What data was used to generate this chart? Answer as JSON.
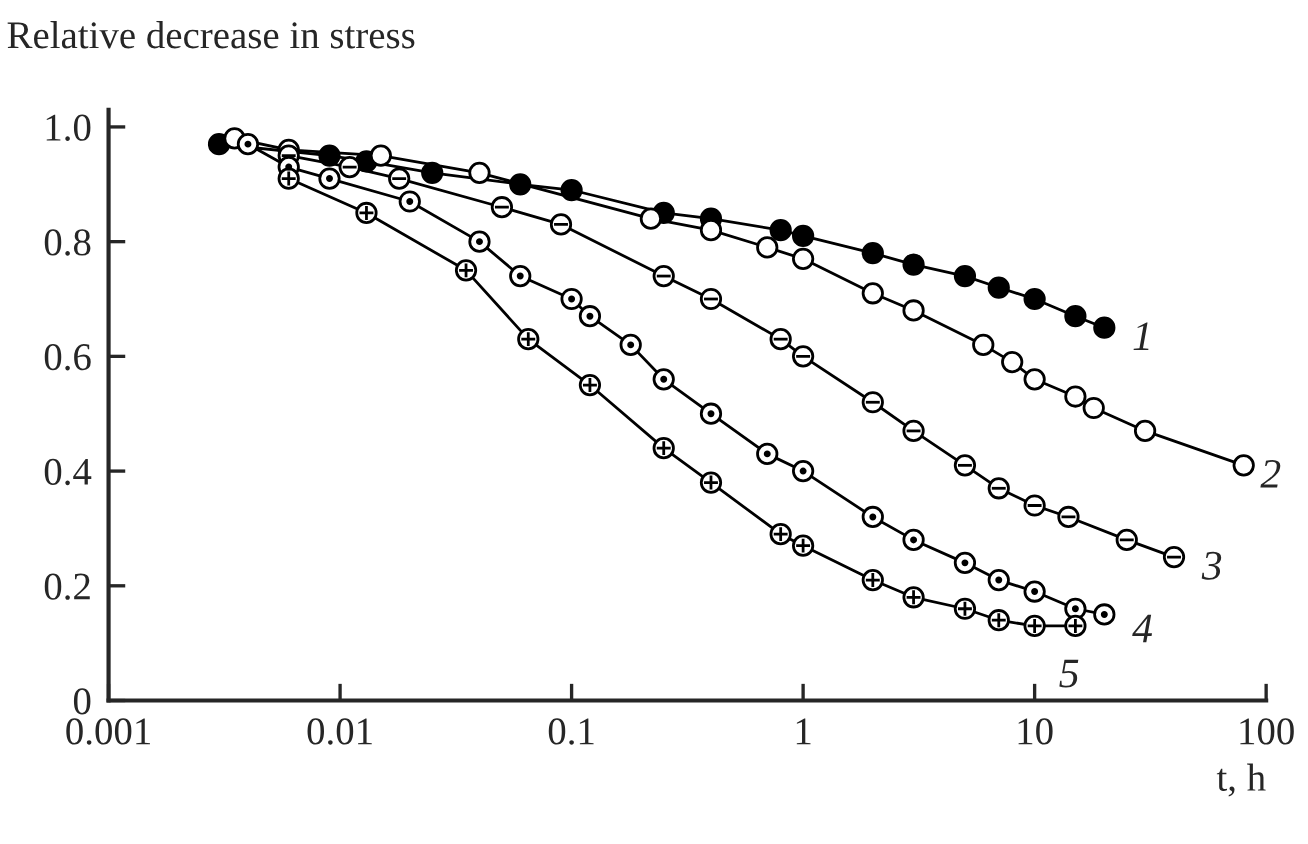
{
  "chart_data": {
    "type": "line",
    "ylabel": "Relative decrease in stress",
    "xlabel": "t, h",
    "log": "x",
    "grid": false,
    "legend": "right",
    "marker": "circle",
    "xlim": [
      0.001,
      100
    ],
    "xticks": [
      0.001,
      0.01,
      0.1,
      1,
      10,
      100
    ],
    "ylim": [
      0,
      1.03
    ],
    "yticks": [
      0,
      0.2,
      0.4,
      0.6,
      0.8,
      {
        "value": 1,
        "label": "1.0"
      }
    ],
    "series": [
      {
        "name": "1",
        "color": "#000000",
        "x": [
          0.003,
          0.009,
          0.013,
          0.025,
          0.06,
          0.1,
          0.25,
          0.4,
          0.8,
          1,
          2,
          3,
          5,
          7,
          10,
          15,
          20
        ],
        "values": [
          0.97,
          0.95,
          0.94,
          0.92,
          0.9,
          0.89,
          0.85,
          0.84,
          0.82,
          0.81,
          0.78,
          0.76,
          0.74,
          0.72,
          0.7,
          0.67,
          0.65
        ]
      },
      {
        "name": "2",
        "color": "#000000",
        "x": [
          0.0035,
          0.006,
          0.015,
          0.04,
          0.22,
          0.4,
          0.7,
          1,
          2,
          3,
          6,
          8,
          10,
          15,
          18,
          30,
          80
        ],
        "values": [
          0.98,
          0.96,
          0.95,
          0.92,
          0.84,
          0.82,
          0.79,
          0.77,
          0.71,
          0.68,
          0.62,
          0.59,
          0.56,
          0.53,
          0.51,
          0.47,
          0.41
        ]
      },
      {
        "name": "3",
        "color": "#000000",
        "x": [
          0.006,
          0.011,
          0.018,
          0.05,
          0.09,
          0.25,
          0.4,
          0.8,
          1,
          2,
          3,
          5,
          7,
          10,
          14,
          25,
          40
        ],
        "values": [
          0.95,
          0.93,
          0.91,
          0.86,
          0.83,
          0.74,
          0.7,
          0.63,
          0.6,
          0.52,
          0.47,
          0.41,
          0.37,
          0.34,
          0.32,
          0.28,
          0.25
        ]
      },
      {
        "name": "4",
        "color": "#000000",
        "x": [
          0.004,
          0.006,
          0.009,
          0.02,
          0.04,
          0.06,
          0.1,
          0.12,
          0.18,
          0.25,
          0.4,
          0.7,
          1,
          2,
          3,
          5,
          7,
          10,
          15,
          20
        ],
        "values": [
          0.97,
          0.93,
          0.91,
          0.87,
          0.8,
          0.74,
          0.7,
          0.67,
          0.62,
          0.56,
          0.5,
          0.43,
          0.4,
          0.32,
          0.28,
          0.24,
          0.21,
          0.19,
          0.16,
          0.15
        ]
      },
      {
        "name": "5",
        "color": "#000000",
        "x": [
          0.006,
          0.013,
          0.035,
          0.065,
          0.12,
          0.25,
          0.4,
          0.8,
          1,
          2,
          3,
          5,
          7,
          10,
          15
        ],
        "values": [
          0.91,
          0.85,
          0.75,
          0.63,
          0.55,
          0.44,
          0.38,
          0.29,
          0.27,
          0.21,
          0.18,
          0.16,
          0.14,
          0.13,
          0.13
        ]
      }
    ]
  }
}
